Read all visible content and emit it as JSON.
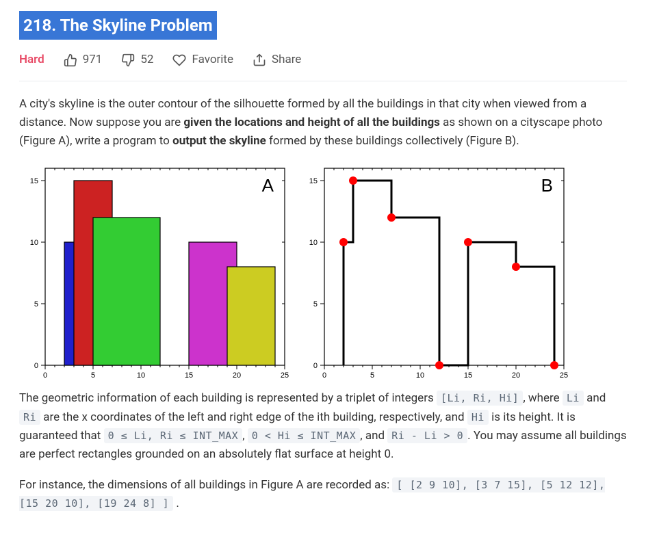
{
  "title": "218. The Skyline Problem",
  "difficulty": "Hard",
  "stats": {
    "likes": "971",
    "dislikes": "52",
    "favorite": "Favorite",
    "share": "Share"
  },
  "desc": {
    "p1_a": "A city's skyline is the outer contour of the silhouette formed by all the buildings in that city when viewed from a distance. Now suppose you are ",
    "p1_bold1": "given the locations and height of all the buildings",
    "p1_b": " as shown on a cityscape photo (Figure A), write a program to ",
    "p1_bold2": "output the skyline",
    "p1_c": " formed by these buildings collectively (Figure B).",
    "p2_a": "The geometric information of each building is represented by a triplet of integers ",
    "p2_code1": "[Li, Ri, Hi]",
    "p2_b": ", where ",
    "p2_code2": "Li",
    "p2_c": " and ",
    "p2_code3": "Ri",
    "p2_d": " are the x coordinates of the left and right edge of the ith building, respectively, and ",
    "p2_code4": "Hi",
    "p2_e": " is its height. It is guaranteed that ",
    "p2_code5": "0 ≤ Li, Ri ≤ INT_MAX",
    "p2_f": ", ",
    "p2_code6": "0 < Hi ≤ INT_MAX",
    "p2_g": ", and ",
    "p2_code7": "Ri - Li > 0",
    "p2_h": ". You may assume all buildings are perfect rectangles grounded on an absolutely flat surface at height 0.",
    "p3_a": "For instance, the dimensions of all buildings in Figure A are recorded as: ",
    "p3_code": "[ [2 9 10], [3 7 15], [5 12 12], [15 20 10], [19 24 8] ]",
    "p3_b": " ."
  },
  "chart": {
    "type": "skyline",
    "xlim": [
      0,
      25
    ],
    "ylim": [
      0,
      16
    ],
    "xticks": [
      0,
      5,
      10,
      15,
      20,
      25
    ],
    "yticks": [
      0,
      5,
      10,
      15
    ],
    "tick_fontsize": 11,
    "border_color": "#000000",
    "background_color": "#ffffff",
    "buildings": [
      {
        "l": 2,
        "r": 9,
        "h": 10,
        "fill": "#2020cc"
      },
      {
        "l": 3,
        "r": 7,
        "h": 15,
        "fill": "#cc2222"
      },
      {
        "l": 5,
        "r": 12,
        "h": 12,
        "fill": "#33cc33"
      },
      {
        "l": 15,
        "r": 20,
        "h": 10,
        "fill": "#cc33cc"
      },
      {
        "l": 19,
        "r": 24,
        "h": 8,
        "fill": "#cccc22"
      }
    ],
    "skyline_points": [
      [
        2,
        10
      ],
      [
        3,
        15
      ],
      [
        7,
        12
      ],
      [
        12,
        0
      ],
      [
        15,
        10
      ],
      [
        20,
        8
      ],
      [
        24,
        0
      ]
    ],
    "skyline_line_color": "#000000",
    "skyline_line_width": 3,
    "keypoint_marker_color": "#ff0000",
    "keypoint_marker_radius": 6,
    "panelA_label": "A",
    "panelB_label": "B"
  }
}
